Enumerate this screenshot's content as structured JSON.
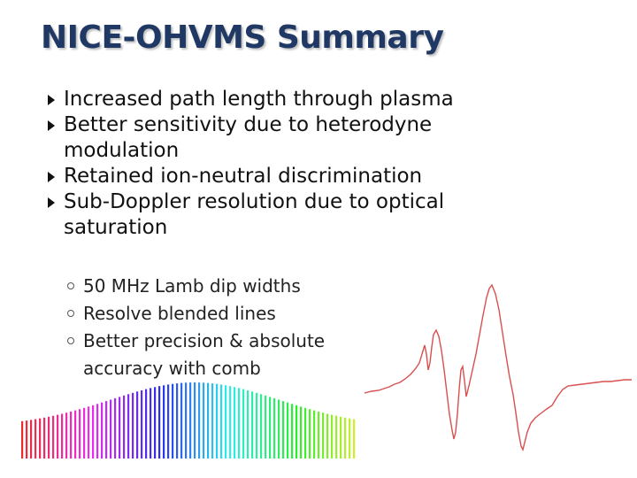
{
  "slide": {
    "title": "NICE-OHVMS Summary",
    "bullets": [
      {
        "text": "Increased path length through plasma"
      },
      {
        "text": "Better sensitivity due to heterodyne modulation"
      },
      {
        "text": "Retained ion-neutral discrimination"
      },
      {
        "text": "Sub-Doppler resolution due to optical saturation"
      }
    ],
    "sub_bullets": [
      {
        "text": "50 MHz Lamb dip widths"
      },
      {
        "text": "Resolve blended lines"
      },
      {
        "text": "Better precision & absolute accuracy with comb"
      }
    ]
  },
  "colors": {
    "title": "#1f3864",
    "body_text": "#111111",
    "trace": "#d94f4f"
  },
  "graphics": {
    "comb_icon": "frequency-comb-rainbow-bars",
    "trace_icon": "lamb-dip-signal-trace"
  }
}
